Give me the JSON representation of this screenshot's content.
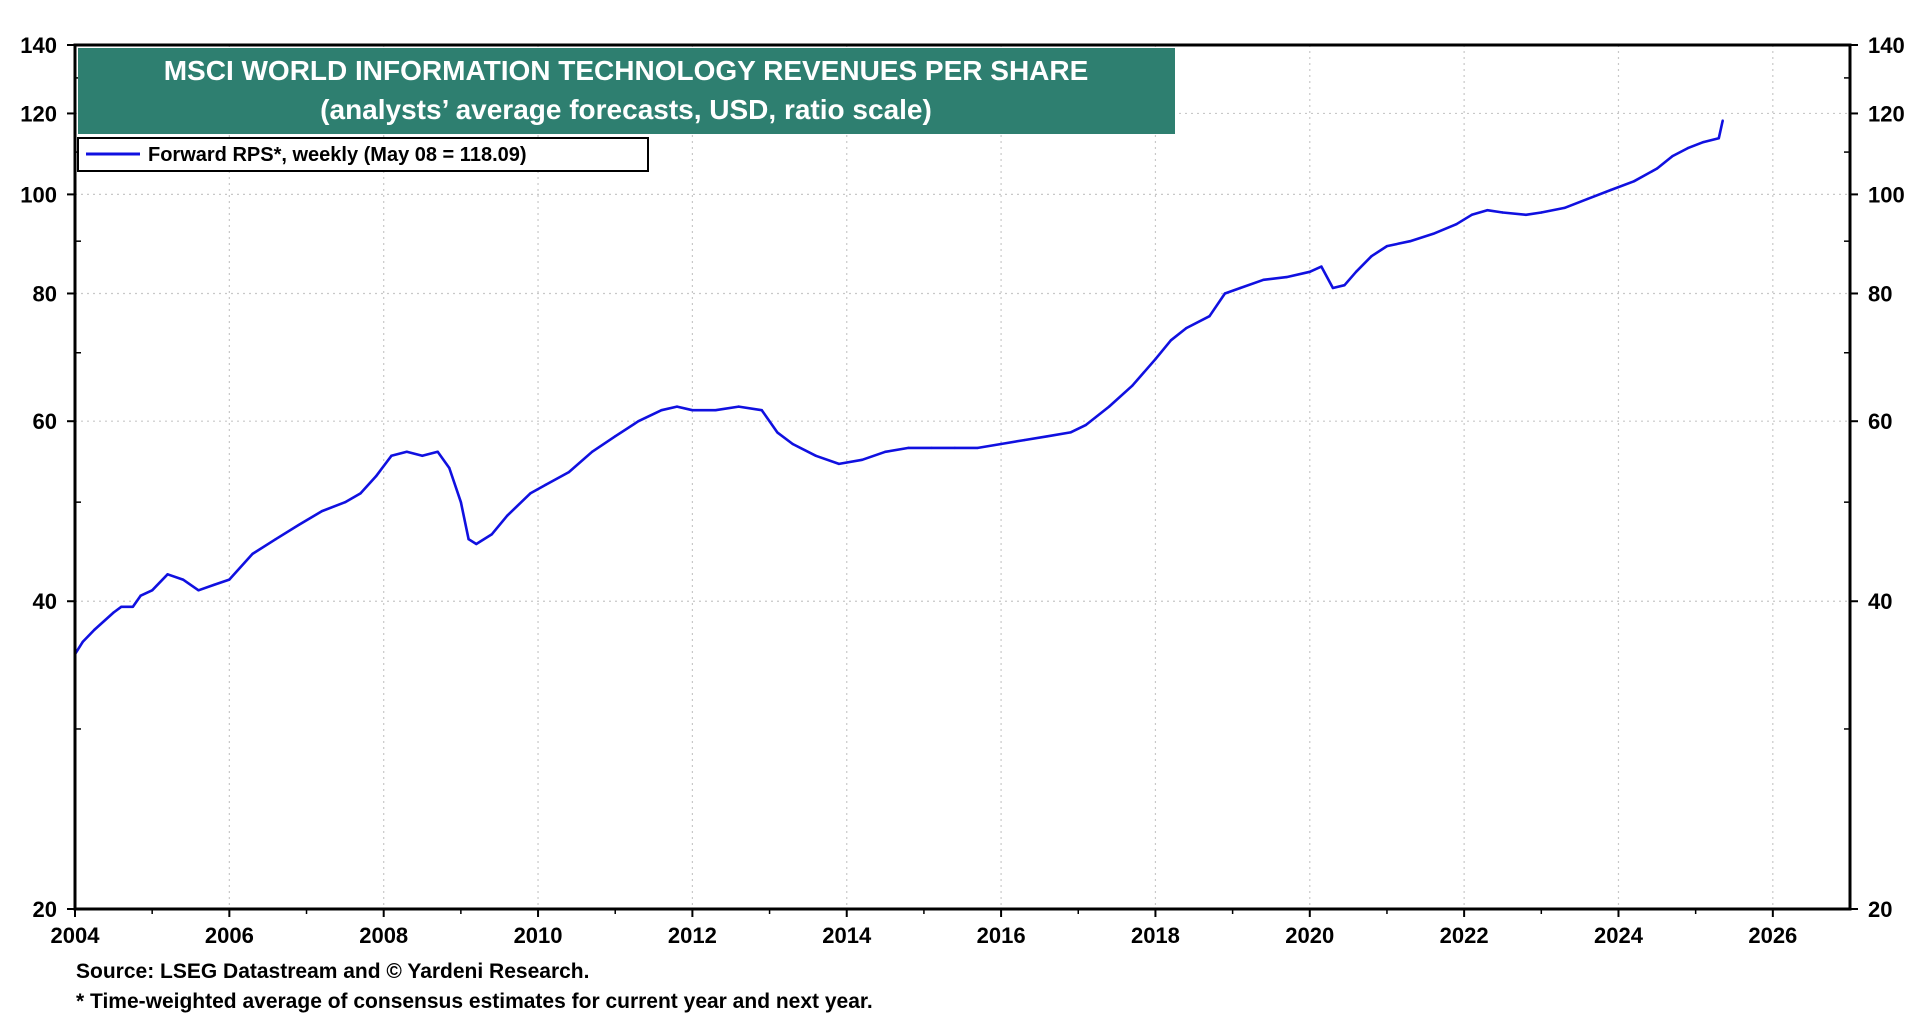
{
  "chart_data": {
    "type": "line",
    "title": "MSCI WORLD INFORMATION TECHNOLOGY REVENUES PER SHARE",
    "subtitle": "(analysts’ average forecasts, USD, ratio scale)",
    "legend": "Forward RPS*, weekly (May 08 = 118.09)",
    "legend_position": "top-left",
    "xlabel": "",
    "ylabel": "",
    "y_scale": "log",
    "xlim": [
      2004,
      2027
    ],
    "ylim": [
      20,
      140
    ],
    "x_ticks": [
      2004,
      2006,
      2008,
      2010,
      2012,
      2014,
      2016,
      2018,
      2020,
      2022,
      2024,
      2026
    ],
    "x_tick_labels": [
      "2004",
      "2006",
      "2008",
      "2010",
      "2012",
      "2014",
      "2016",
      "2018",
      "2020",
      "2022",
      "2024",
      "2026"
    ],
    "y_ticks": [
      20,
      40,
      60,
      80,
      100,
      120,
      140
    ],
    "y_tick_labels": [
      "20",
      "40",
      "60",
      "80",
      "100",
      "120",
      "140"
    ],
    "grid": true,
    "series": [
      {
        "name": "Forward RPS*, weekly",
        "color": "#1010e0",
        "x": [
          2004.0,
          2004.1,
          2004.25,
          2004.5,
          2004.6,
          2004.75,
          2004.85,
          2005.0,
          2005.2,
          2005.4,
          2005.6,
          2005.8,
          2006.0,
          2006.3,
          2006.6,
          2006.9,
          2007.2,
          2007.5,
          2007.7,
          2007.9,
          2008.1,
          2008.3,
          2008.5,
          2008.7,
          2008.85,
          2009.0,
          2009.1,
          2009.2,
          2009.4,
          2009.6,
          2009.9,
          2010.1,
          2010.4,
          2010.7,
          2011.0,
          2011.3,
          2011.6,
          2011.8,
          2012.0,
          2012.3,
          2012.6,
          2012.9,
          2013.1,
          2013.3,
          2013.6,
          2013.9,
          2014.2,
          2014.5,
          2014.8,
          2015.1,
          2015.4,
          2015.7,
          2016.0,
          2016.3,
          2016.6,
          2016.9,
          2017.1,
          2017.4,
          2017.7,
          2018.0,
          2018.2,
          2018.4,
          2018.7,
          2018.9,
          2019.1,
          2019.4,
          2019.7,
          2020.0,
          2020.15,
          2020.3,
          2020.45,
          2020.6,
          2020.8,
          2021.0,
          2021.3,
          2021.6,
          2021.9,
          2022.1,
          2022.3,
          2022.5,
          2022.8,
          2023.0,
          2023.3,
          2023.6,
          2023.9,
          2024.2,
          2024.5,
          2024.7,
          2024.9,
          2025.1,
          2025.3,
          2025.35
        ],
        "values": [
          35.5,
          36.5,
          37.5,
          39.0,
          39.5,
          39.5,
          40.5,
          41.0,
          42.5,
          42.0,
          41.0,
          41.5,
          42.0,
          44.5,
          46.0,
          47.5,
          49.0,
          50.0,
          51.0,
          53.0,
          55.5,
          56.0,
          55.5,
          56.0,
          54.0,
          50.0,
          46.0,
          45.5,
          46.5,
          48.5,
          51.0,
          52.0,
          53.5,
          56.0,
          58.0,
          60.0,
          61.5,
          62.0,
          61.5,
          61.5,
          62.0,
          61.5,
          58.5,
          57.0,
          55.5,
          54.5,
          55.0,
          56.0,
          56.5,
          56.5,
          56.5,
          56.5,
          57.0,
          57.5,
          58.0,
          58.5,
          59.5,
          62.0,
          65.0,
          69.0,
          72.0,
          74.0,
          76.0,
          80.0,
          81.0,
          82.5,
          83.0,
          84.0,
          85.0,
          81.0,
          81.5,
          84.0,
          87.0,
          89.0,
          90.0,
          91.5,
          93.5,
          95.5,
          96.5,
          96.0,
          95.5,
          96.0,
          97.0,
          99.0,
          101.0,
          103.0,
          106.0,
          109.0,
          111.0,
          112.5,
          113.5,
          118.09
        ]
      }
    ]
  },
  "footer": {
    "source": "Source: LSEG Datastream and © Yardeni Research.",
    "note": "* Time-weighted average of consensus estimates for current year and next year."
  },
  "colors": {
    "title_bg": "#2e7f70",
    "series": "#1010e0",
    "grid": "#c8c8c8"
  }
}
